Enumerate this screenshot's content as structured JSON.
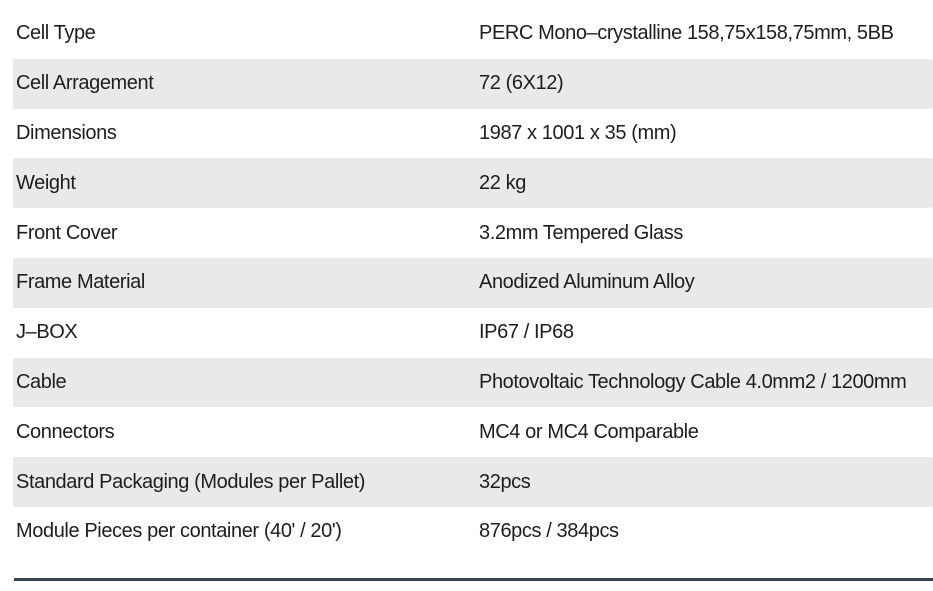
{
  "table": {
    "rows": [
      {
        "label": "Cell Type",
        "value": "PERC Mono–crystalline 158,75x158,75mm, 5BB"
      },
      {
        "label": "Cell Arragement",
        "value": "72 (6X12)"
      },
      {
        "label": "Dimensions",
        "value": "1987 x 1001 x 35 (mm)"
      },
      {
        "label": "Weight",
        "value": "22 kg"
      },
      {
        "label": "Front Cover",
        "value": "3.2mm Tempered Glass"
      },
      {
        "label": "Frame Material",
        "value": "Anodized Aluminum Alloy"
      },
      {
        "label": "J–BOX",
        "value": "IP67 / IP68"
      },
      {
        "label": "Cable",
        "value": "Photovoltaic Technology Cable 4.0mm2 / 1200mm"
      },
      {
        "label": "Connectors",
        "value": "MC4 or MC4 Comparable"
      },
      {
        "label": "Standard Packaging (Modules per Pallet)",
        "value": "32pcs"
      },
      {
        "label": "Module Pieces per container (40' / 20')",
        "value": "876pcs / 384pcs"
      }
    ]
  },
  "colors": {
    "background": "#ffffff",
    "row_alt": "#e9e9ea",
    "text": "#1d1d1f",
    "bottom_rule": "#36454e"
  }
}
